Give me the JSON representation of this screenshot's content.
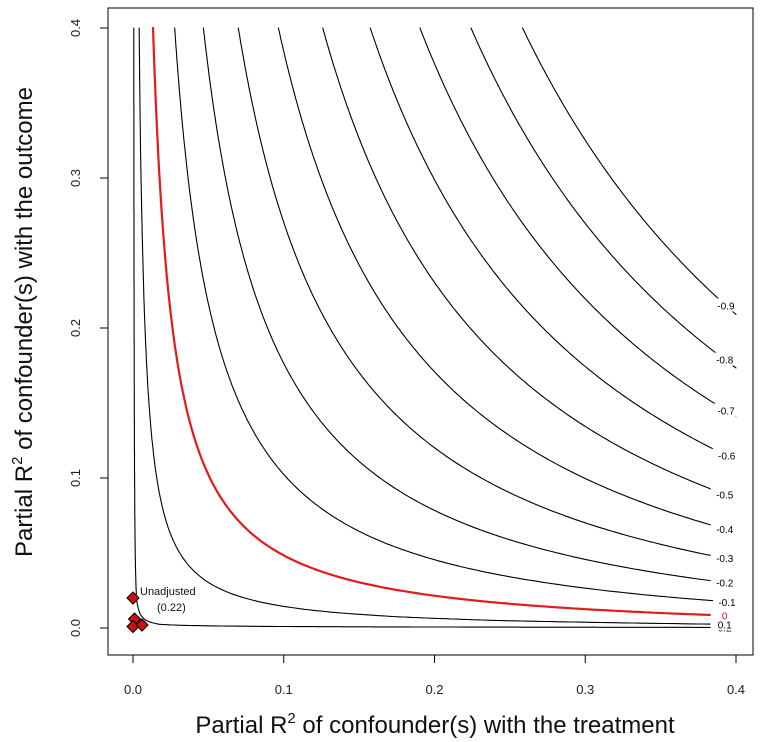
{
  "chart_data": {
    "type": "contour",
    "xlabel_pre": "Partial R",
    "xlabel_sup": "2",
    "xlabel_post": " of confounder(s) with the treatment",
    "ylabel_pre": "Partial R",
    "ylabel_sup": "2",
    "ylabel_post": " of confounder(s) with the outcome",
    "xlim": [
      0,
      0.4
    ],
    "ylim": [
      0,
      0.4
    ],
    "x_ticks": [
      "0.0",
      "0.1",
      "0.2",
      "0.3",
      "0.4"
    ],
    "y_ticks": [
      "0.0",
      "0.1",
      "0.2",
      "0.3",
      "0.4"
    ],
    "grid": false,
    "contour_levels": [
      {
        "label": "0.2",
        "value": 0.2,
        "style": "solid",
        "color": "#000000"
      },
      {
        "label": "0.1",
        "value": 0.1,
        "style": "solid",
        "color": "#000000"
      },
      {
        "label": "0",
        "value": 0.0,
        "style": "dashed",
        "color": "#e41a1c"
      },
      {
        "label": "-0.1",
        "value": -0.1,
        "style": "solid",
        "color": "#000000"
      },
      {
        "label": "-0.2",
        "value": -0.2,
        "style": "solid",
        "color": "#000000"
      },
      {
        "label": "-0.3",
        "value": -0.3,
        "style": "solid",
        "color": "#000000"
      },
      {
        "label": "-0.4",
        "value": -0.4,
        "style": "solid",
        "color": "#000000"
      },
      {
        "label": "-0.5",
        "value": -0.5,
        "style": "solid",
        "color": "#000000"
      },
      {
        "label": "-0.6",
        "value": -0.6,
        "style": "solid",
        "color": "#000000"
      },
      {
        "label": "-0.7",
        "value": -0.7,
        "style": "solid",
        "color": "#000000"
      },
      {
        "label": "-0.8",
        "value": -0.8,
        "style": "solid",
        "color": "#000000"
      },
      {
        "label": "-0.9",
        "value": -0.9,
        "style": "solid",
        "color": "#000000"
      }
    ],
    "points": [
      {
        "x": 0.0,
        "y": 0.02,
        "label": "Unadjusted",
        "sublabel": "(0.22)",
        "marker": "diamond",
        "color": "#cc1111"
      },
      {
        "x": 0.001,
        "y": 0.006,
        "label": "",
        "marker": "diamond",
        "color": "#cc1111"
      },
      {
        "x": 0.0,
        "y": 0.001,
        "label": "",
        "marker": "diamond",
        "color": "#cc1111"
      },
      {
        "x": 0.006,
        "y": 0.002,
        "label": "",
        "marker": "diamond",
        "color": "#cc1111"
      }
    ]
  }
}
